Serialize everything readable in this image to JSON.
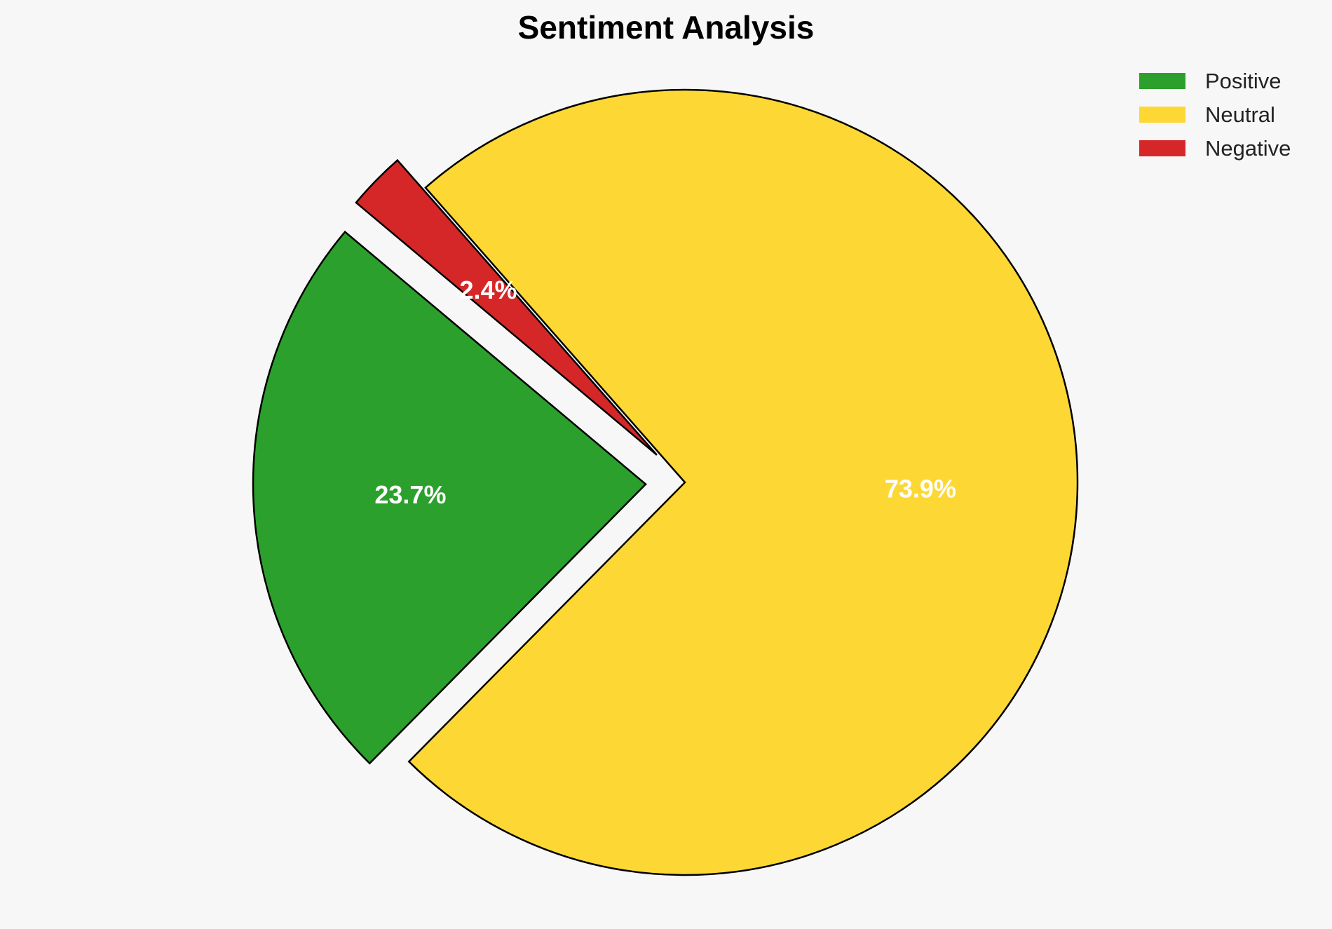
{
  "chart_data": {
    "type": "pie",
    "title": "Sentiment Analysis",
    "start_angle_deg": 140,
    "direction": "counterclockwise",
    "slices": [
      {
        "label": "Positive",
        "value": 23.7,
        "display": "23.7%",
        "color": "#2ca02c",
        "explode": 0.1
      },
      {
        "label": "Neutral",
        "value": 73.9,
        "display": "73.9%",
        "color": "#fdd835",
        "explode": 0.0
      },
      {
        "label": "Negative",
        "value": 2.4,
        "display": "2.4%",
        "color": "#d62728",
        "explode": 0.1
      }
    ],
    "legend": {
      "placement": "top-right"
    }
  }
}
